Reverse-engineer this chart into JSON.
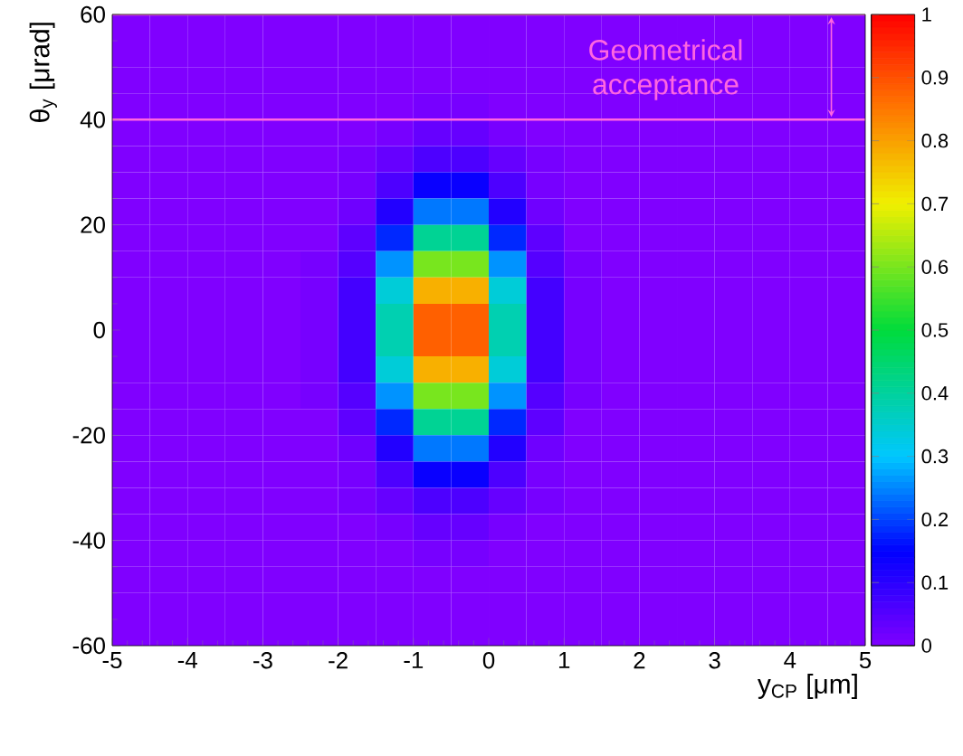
{
  "chart_data": {
    "type": "heatmap",
    "xlabel": "y$_{CP}$ [μm]",
    "ylabel": "θ$_{y}$ [μrad]",
    "xlim": [
      -5,
      5
    ],
    "xticks": [
      -5,
      -4,
      -3,
      -2,
      -1,
      0,
      1,
      2,
      3,
      4,
      5
    ],
    "ylim": [
      -60,
      60
    ],
    "yticks": [
      -60,
      -40,
      -20,
      0,
      20,
      40,
      60
    ],
    "clim": [
      0,
      1
    ],
    "cticks": [
      0,
      0.1,
      0.2,
      0.3,
      0.4,
      0.5,
      0.6,
      0.7,
      0.8,
      0.9,
      1
    ],
    "ref_lines": [
      {
        "axis": "y",
        "value": 40,
        "color": "#ff66e0"
      },
      {
        "axis": "y",
        "value": 60,
        "color": "#ff66e0"
      }
    ],
    "annotations": [
      "Geometrical acceptance"
    ],
    "cells": [
      [
        0,
        0,
        0,
        0,
        0,
        0,
        0,
        0,
        0,
        0,
        0,
        0,
        0,
        0,
        0,
        0,
        0,
        0,
        0,
        0
      ],
      [
        0,
        0,
        0,
        0,
        0,
        0,
        0,
        0,
        0,
        0,
        0,
        0,
        0,
        0,
        0,
        0,
        0,
        0,
        0,
        0
      ],
      [
        0,
        0,
        0,
        0,
        0,
        0,
        0,
        0,
        0,
        0,
        0,
        0,
        0,
        0,
        0,
        0,
        0,
        0,
        0,
        0
      ],
      [
        0,
        0,
        0,
        0,
        0,
        0,
        0,
        0,
        0.01,
        0.01,
        0,
        0,
        0,
        0,
        0,
        0,
        0,
        0,
        0,
        0
      ],
      [
        0,
        0,
        0,
        0,
        0,
        0,
        0,
        0.01,
        0.03,
        0.03,
        0.01,
        0,
        0,
        0,
        0,
        0,
        0,
        0,
        0,
        0
      ],
      [
        0,
        0,
        0,
        0,
        0,
        0,
        0.01,
        0.03,
        0.06,
        0.06,
        0.03,
        0.01,
        0,
        0,
        0,
        0,
        0,
        0,
        0,
        0
      ],
      [
        0,
        0,
        0,
        0,
        0,
        0,
        0.01,
        0.06,
        0.14,
        0.14,
        0.06,
        0.01,
        0,
        0,
        0,
        0,
        0,
        0,
        0,
        0
      ],
      [
        0,
        0,
        0,
        0,
        0,
        0,
        0.02,
        0.11,
        0.24,
        0.24,
        0.11,
        0.02,
        0,
        0,
        0,
        0,
        0,
        0,
        0,
        0
      ],
      [
        0,
        0,
        0,
        0,
        0,
        0,
        0.04,
        0.18,
        0.41,
        0.41,
        0.18,
        0.04,
        0,
        0,
        0,
        0,
        0,
        0,
        0,
        0
      ],
      [
        0,
        0,
        0,
        0,
        0,
        0.01,
        0.05,
        0.26,
        0.6,
        0.6,
        0.26,
        0.05,
        0.01,
        0,
        0,
        0,
        0,
        0,
        0,
        0
      ],
      [
        0,
        0,
        0,
        0,
        0,
        0.01,
        0.07,
        0.34,
        0.78,
        0.78,
        0.34,
        0.07,
        0.01,
        0,
        0,
        0,
        0,
        0,
        0,
        0
      ],
      [
        0,
        0,
        0,
        0,
        0,
        0.01,
        0.07,
        0.38,
        0.88,
        0.88,
        0.38,
        0.07,
        0.01,
        0,
        0,
        0,
        0,
        0,
        0,
        0
      ],
      [
        0,
        0,
        0,
        0,
        0,
        0.01,
        0.07,
        0.38,
        0.88,
        0.88,
        0.38,
        0.07,
        0.01,
        0,
        0,
        0,
        0,
        0,
        0,
        0
      ],
      [
        0,
        0,
        0,
        0,
        0,
        0.01,
        0.07,
        0.34,
        0.78,
        0.78,
        0.34,
        0.07,
        0.01,
        0,
        0,
        0,
        0,
        0,
        0,
        0
      ],
      [
        0,
        0,
        0,
        0,
        0,
        0.01,
        0.05,
        0.26,
        0.6,
        0.6,
        0.26,
        0.05,
        0.01,
        0,
        0,
        0,
        0,
        0,
        0,
        0
      ],
      [
        0,
        0,
        0,
        0,
        0,
        0,
        0.04,
        0.18,
        0.41,
        0.41,
        0.18,
        0.04,
        0,
        0,
        0,
        0,
        0,
        0,
        0,
        0
      ],
      [
        0,
        0,
        0,
        0,
        0,
        0,
        0.02,
        0.11,
        0.24,
        0.24,
        0.11,
        0.02,
        0,
        0,
        0,
        0,
        0,
        0,
        0,
        0
      ],
      [
        0,
        0,
        0,
        0,
        0,
        0,
        0.01,
        0.06,
        0.14,
        0.14,
        0.06,
        0.01,
        0,
        0,
        0,
        0,
        0,
        0,
        0,
        0
      ],
      [
        0,
        0,
        0,
        0,
        0,
        0,
        0.01,
        0.03,
        0.06,
        0.06,
        0.03,
        0.01,
        0,
        0,
        0,
        0,
        0,
        0,
        0,
        0
      ],
      [
        0,
        0,
        0,
        0,
        0,
        0,
        0,
        0.01,
        0.03,
        0.03,
        0.01,
        0,
        0,
        0,
        0,
        0,
        0,
        0,
        0,
        0
      ],
      [
        0,
        0,
        0,
        0,
        0,
        0,
        0,
        0,
        0.01,
        0.01,
        0,
        0,
        0,
        0,
        0,
        0,
        0,
        0,
        0,
        0
      ],
      [
        0,
        0,
        0,
        0,
        0,
        0,
        0,
        0,
        0,
        0,
        0,
        0,
        0,
        0,
        0,
        0,
        0,
        0,
        0,
        0
      ],
      [
        0,
        0,
        0,
        0,
        0,
        0,
        0,
        0,
        0,
        0,
        0,
        0,
        0,
        0,
        0,
        0,
        0,
        0,
        0,
        0
      ],
      [
        0,
        0,
        0,
        0,
        0,
        0,
        0,
        0,
        0,
        0,
        0,
        0,
        0,
        0,
        0,
        0,
        0,
        0,
        0,
        0
      ]
    ]
  }
}
